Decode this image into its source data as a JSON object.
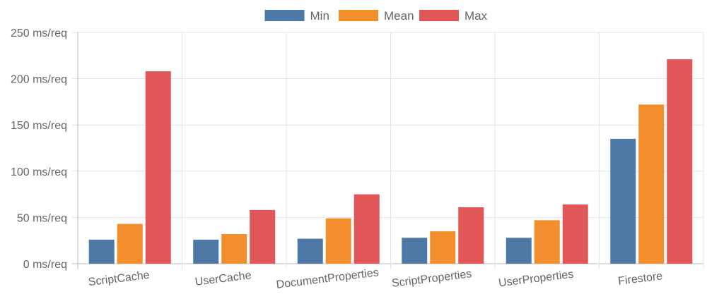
{
  "chart_data": {
    "type": "bar",
    "categories": [
      "ScriptCache",
      "UserCache",
      "DocumentProperties",
      "ScriptProperties",
      "UserProperties",
      "Firestore"
    ],
    "series": [
      {
        "name": "Min",
        "color": "#4e79a7",
        "values": [
          26,
          26,
          27,
          28,
          28,
          135
        ]
      },
      {
        "name": "Mean",
        "color": "#f28e2b",
        "values": [
          43,
          32,
          49,
          35,
          47,
          172
        ]
      },
      {
        "name": "Max",
        "color": "#e15759",
        "values": [
          208,
          58,
          75,
          61,
          64,
          221
        ]
      }
    ],
    "ylim": [
      0,
      250
    ],
    "yticks": [
      0,
      50,
      100,
      150,
      200,
      250
    ],
    "ytick_labels": [
      "0 ms/req",
      "50 ms/req",
      "100 ms/req",
      "150 ms/req",
      "200 ms/req",
      "250 ms/req"
    ],
    "legend_position": "top-center",
    "grid": true
  }
}
